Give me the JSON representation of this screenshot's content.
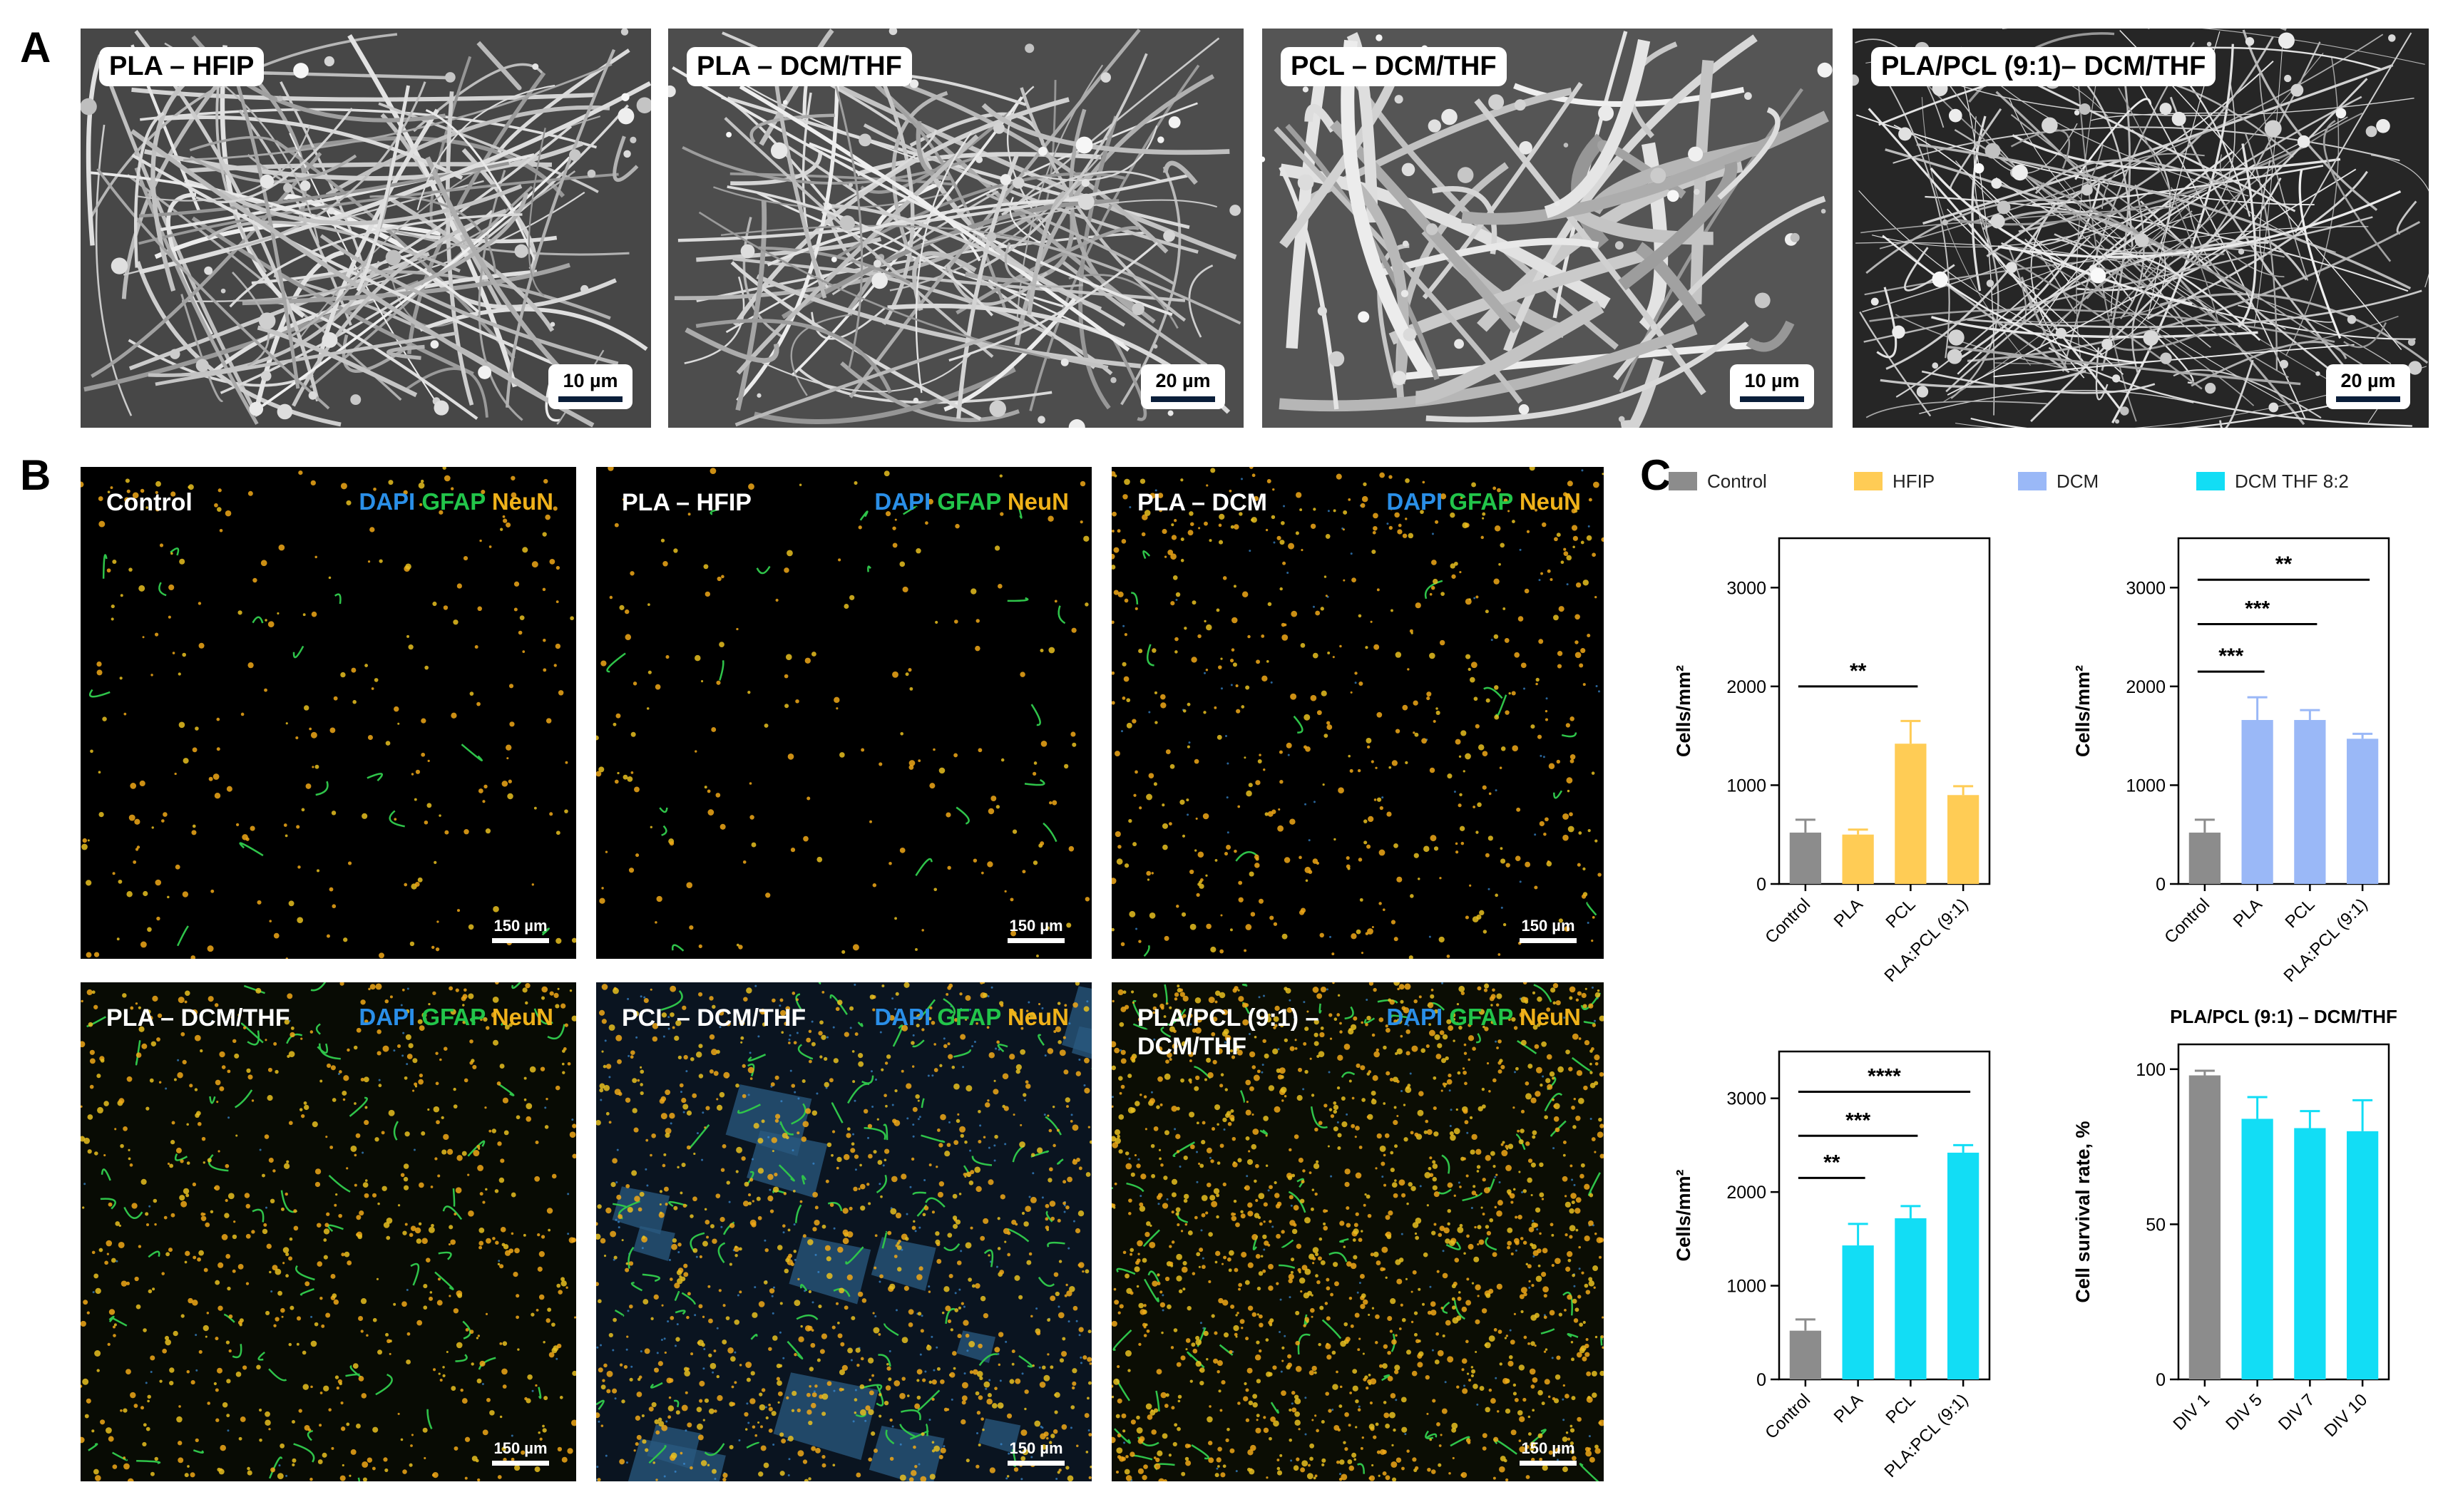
{
  "panels": {
    "a": "A",
    "b": "B",
    "c": "C"
  },
  "sem": [
    {
      "label": "PLA – HFIP",
      "scale": "10 µm"
    },
    {
      "label": "PLA – DCM/THF",
      "scale": "20 µm"
    },
    {
      "label": "PCL – DCM/THF",
      "scale": "10 µm"
    },
    {
      "label": "PLA/PCL (9:1)– DCM/THF",
      "scale": "20 µm"
    }
  ],
  "stain": {
    "dapi": "DAPI",
    "gfap": "GFAP",
    "neun": "NeuN"
  },
  "fluor": [
    {
      "title": "Control",
      "scale": "150 µm"
    },
    {
      "title": "PLA – HFIP",
      "scale": "150 µm"
    },
    {
      "title": "PLA – DCM",
      "scale": "150 µm"
    },
    {
      "title": "PLA – DCM/THF",
      "scale": "150 µm"
    },
    {
      "title": "PCL – DCM/THF",
      "scale": "150 µm"
    },
    {
      "title": "PLA/PCL (9:1) –",
      "title2": "DCM/THF",
      "scale": "150 µm"
    }
  ],
  "legend": [
    {
      "label": "Control",
      "color": "#8c8c8c"
    },
    {
      "label": "HFIP",
      "color": "#ffcc55"
    },
    {
      "label": "DCM",
      "color": "#9ab8f7"
    },
    {
      "label": "DCM THF 8:2",
      "color": "#12ddf5"
    }
  ],
  "chart_data": [
    {
      "type": "bar",
      "title": "",
      "ylabel": "Cells/mm²",
      "ylim": [
        0,
        3500
      ],
      "yticks": [
        0,
        1000,
        2000,
        3000
      ],
      "categories": [
        "Control",
        "PLA",
        "PCL",
        "PLA:PCL (9:1)"
      ],
      "values": [
        520,
        500,
        1420,
        900
      ],
      "errors": [
        130,
        50,
        230,
        90
      ],
      "colors": [
        "#8c8c8c",
        "#ffcc55",
        "#ffcc55",
        "#ffcc55"
      ],
      "significance": [
        {
          "from": 0,
          "to": 2,
          "label": "**",
          "y": 2000
        }
      ]
    },
    {
      "type": "bar",
      "title": "",
      "ylabel": "Cells/mm²",
      "ylim": [
        0,
        3500
      ],
      "yticks": [
        0,
        1000,
        2000,
        3000
      ],
      "categories": [
        "Control",
        "PLA",
        "PCL",
        "PLA:PCL (9:1)"
      ],
      "values": [
        520,
        1660,
        1660,
        1470
      ],
      "errors": [
        130,
        230,
        100,
        50
      ],
      "colors": [
        "#8c8c8c",
        "#9ab8f7",
        "#9ab8f7",
        "#9ab8f7"
      ],
      "significance": [
        {
          "from": 0,
          "to": 1,
          "label": "***",
          "y": 2150
        },
        {
          "from": 0,
          "to": 2,
          "label": "***",
          "y": 2630
        },
        {
          "from": 0,
          "to": 3,
          "label": "**",
          "y": 3080
        }
      ]
    },
    {
      "type": "bar",
      "title": "",
      "ylabel": "Cells/mm²",
      "ylim": [
        0,
        3500
      ],
      "yticks": [
        0,
        1000,
        2000,
        3000
      ],
      "categories": [
        "Control",
        "PLA",
        "PCL",
        "PLA:PCL (9:1)"
      ],
      "values": [
        520,
        1430,
        1720,
        2420
      ],
      "errors": [
        120,
        230,
        130,
        80
      ],
      "colors": [
        "#8c8c8c",
        "#12ddf5",
        "#12ddf5",
        "#12ddf5"
      ],
      "significance": [
        {
          "from": 0,
          "to": 1,
          "label": "**",
          "y": 2150
        },
        {
          "from": 0,
          "to": 2,
          "label": "***",
          "y": 2600
        },
        {
          "from": 0,
          "to": 3,
          "label": "****",
          "y": 3070
        }
      ]
    },
    {
      "type": "bar",
      "title": "PLA/PCL (9:1) – DCM/THF",
      "ylabel": "Cell survival rate, %",
      "ylim": [
        0,
        108
      ],
      "yticks": [
        0,
        50,
        100
      ],
      "categories": [
        "DIV 1",
        "DIV 5",
        "DIV 7",
        "DIV 10"
      ],
      "values": [
        98,
        84,
        81,
        80
      ],
      "errors": [
        1.5,
        7,
        5.5,
        10
      ],
      "colors": [
        "#8c8c8c",
        "#12ddf5",
        "#12ddf5",
        "#12ddf5"
      ],
      "significance": []
    }
  ]
}
